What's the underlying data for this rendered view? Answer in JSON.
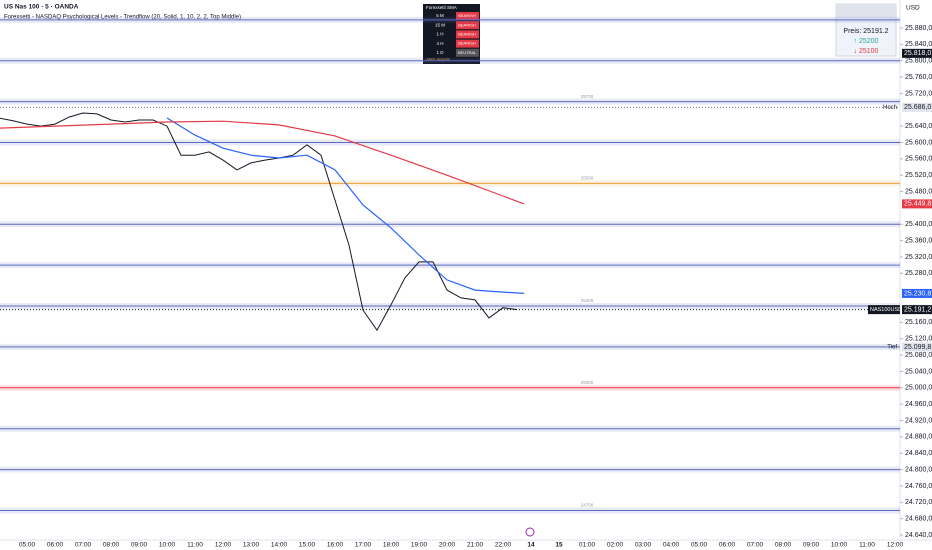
{
  "header": {
    "symbol": "US Nas 100 · 5 · OANDA",
    "indicator": "Forexsetti - NASDAQ Psychological Levels - Trendflow (20, Solid, 1, 10, 2, 2, Top Middle)",
    "currency": "USD"
  },
  "trend_table": {
    "title": "Forexsetti SMA",
    "rows": [
      [
        "5 M",
        "BEARISH"
      ],
      [
        "15 M",
        "BEARISH"
      ],
      [
        "1 H",
        "BEARISH"
      ],
      [
        "4 H",
        "BEARISH"
      ],
      [
        "1 D",
        "NEUTRAL"
      ]
    ],
    "footer": "ANS Impuls"
  },
  "price_box": {
    "price": "Preis: 25191.2",
    "up": "↑ 25200",
    "down": "↓ 25100"
  },
  "chart_data": {
    "type": "line",
    "categories": [
      "05:00",
      "06:00",
      "07:00",
      "08:00",
      "09:00",
      "10:00",
      "11:00",
      "12:00",
      "13:00",
      "14:00",
      "15:00",
      "16:00",
      "17:00",
      "18:00",
      "19:00",
      "20:00",
      "21:00",
      "22:00",
      "14",
      "15",
      "01:00",
      "02:00",
      "03:00",
      "04:00",
      "05:00",
      "06:00",
      "07:00",
      "08:00",
      "09:00",
      "10:00",
      "11:00",
      "12:00"
    ],
    "ylim": [
      24640,
      25880
    ],
    "yticks": [
      {
        "value": 25880,
        "label": "25.880,0"
      },
      {
        "value": 25840,
        "label": "25.840,0"
      },
      {
        "value": 25800,
        "label": "25.800,0"
      },
      {
        "value": 25760,
        "label": "25.760,0"
      },
      {
        "value": 25720,
        "label": "25.720,0"
      },
      {
        "value": 25640,
        "label": "25.640,0"
      },
      {
        "value": 25600,
        "label": "25.600,0"
      },
      {
        "value": 25560,
        "label": "25.560,0"
      },
      {
        "value": 25520,
        "label": "25.520,0"
      },
      {
        "value": 25480,
        "label": "25.480,0"
      },
      {
        "value": 25400,
        "label": "25.400,0"
      },
      {
        "value": 25360,
        "label": "25.360,0"
      },
      {
        "value": 25320,
        "label": "25.320,0"
      },
      {
        "value": 25280,
        "label": "25.280,0"
      },
      {
        "value": 25160,
        "label": "25.160,0"
      },
      {
        "value": 25120,
        "label": "25.120,0"
      },
      {
        "value": 25080,
        "label": "25.080,0"
      },
      {
        "value": 25040,
        "label": "25.040,0"
      },
      {
        "value": 25000,
        "label": "25.000,0"
      },
      {
        "value": 24960,
        "label": "24.960,0"
      },
      {
        "value": 24920,
        "label": "24.920,0"
      },
      {
        "value": 24880,
        "label": "24.880,0"
      },
      {
        "value": 24840,
        "label": "24.840,0"
      },
      {
        "value": 24800,
        "label": "24.800,0"
      },
      {
        "value": 24760,
        "label": "24.760,0"
      },
      {
        "value": 24720,
        "label": "24.720,0"
      },
      {
        "value": 24680,
        "label": "24.680,0"
      },
      {
        "value": 24640,
        "label": "24.640,0"
      }
    ],
    "series": [
      {
        "name": "NAS100USD",
        "color": "#131722",
        "x": [
          "04:00",
          "04:30",
          "05:00",
          "05:30",
          "06:00",
          "06:30",
          "07:00",
          "07:30",
          "08:00",
          "08:30",
          "09:00",
          "09:30",
          "10:00",
          "10:30",
          "11:00",
          "11:30",
          "12:00",
          "12:30",
          "13:00",
          "13:30",
          "14:00",
          "14:30",
          "15:00",
          "15:30",
          "16:00",
          "16:30",
          "17:00",
          "17:30",
          "18:00",
          "18:30",
          "19:00",
          "19:30",
          "20:00",
          "20:30",
          "21:00",
          "21:30",
          "22:00",
          "22:30"
        ],
        "values": [
          25660,
          25653,
          25645,
          25640,
          25645,
          25662,
          25672,
          25670,
          25655,
          25650,
          25655,
          25655,
          25640,
          25569,
          25569,
          25577,
          25557,
          25533,
          25550,
          25557,
          25562,
          25569,
          25594,
          25569,
          25459,
          25349,
          25190,
          25141,
          25203,
          25269,
          25308,
          25308,
          25239,
          25220,
          25215,
          25171,
          25196,
          25191.2
        ],
        "end_label": "25.191,2"
      },
      {
        "name": "SMA 20",
        "color": "#2962ff",
        "x": [
          "10:00",
          "11:00",
          "12:00",
          "13:00",
          "14:00",
          "15:00",
          "16:00",
          "17:00",
          "18:00",
          "19:00",
          "20:00",
          "21:00",
          "22:00",
          "22:45"
        ],
        "values": [
          25660,
          25618,
          25586,
          25569,
          25562,
          25569,
          25533,
          25447,
          25391,
          25325,
          25264,
          25239,
          25234,
          25230.8
        ],
        "end_label": "25.230,8"
      },
      {
        "name": "SMA 200",
        "color": "#e53945",
        "x": [
          "04:00",
          "06:00",
          "08:00",
          "10:00",
          "12:00",
          "14:00",
          "16:00",
          "18:00",
          "20:00",
          "22:00",
          "22:45"
        ],
        "values": [
          25635,
          25640,
          25645,
          25650,
          25652,
          25643,
          25616,
          25569,
          25520,
          25469,
          25449.8
        ],
        "end_label": "25.449,8"
      }
    ],
    "levels": [
      {
        "value": 25900,
        "color": "#5c6bc0"
      },
      {
        "value": 25800,
        "color": "#5c6bc0"
      },
      {
        "value": 25700,
        "color": "#5c6bc0",
        "label": "25700"
      },
      {
        "value": 25600,
        "color": "#5c6bc0"
      },
      {
        "value": 25500,
        "color": "#f0a030",
        "label": "25500"
      },
      {
        "value": 25400,
        "color": "#5c6bc0"
      },
      {
        "value": 25300,
        "color": "#5c6bc0"
      },
      {
        "value": 25200,
        "color": "#5c6bc0",
        "label": "25200"
      },
      {
        "value": 25100,
        "color": "#5c6bc0"
      },
      {
        "value": 25000,
        "color": "#e53945",
        "label": "25000"
      },
      {
        "value": 24900,
        "color": "#5c6bc0"
      },
      {
        "value": 24800,
        "color": "#5c6bc0"
      },
      {
        "value": 24700,
        "color": "#5c6bc0",
        "label": "24700"
      }
    ],
    "markers": [
      {
        "name": "Hoch",
        "value": 25686,
        "label": "25.686,0"
      },
      {
        "name": "Tief",
        "value": 25099.8,
        "label": "25.099,8"
      }
    ],
    "tags": [
      {
        "value": 25818,
        "label": "25.818,0",
        "color": "#131722"
      }
    ]
  }
}
